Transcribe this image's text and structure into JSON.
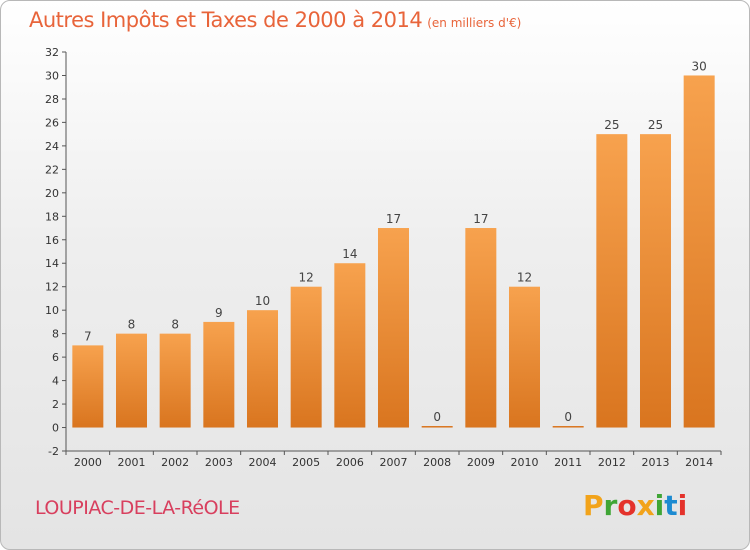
{
  "chart_data": {
    "type": "bar",
    "title": "Autres Impôts et Taxes de 2000 à 2014",
    "subtitle": "(en milliers d'€)",
    "categories": [
      "2000",
      "2001",
      "2002",
      "2003",
      "2004",
      "2005",
      "2006",
      "2007",
      "2008",
      "2009",
      "2010",
      "2011",
      "2012",
      "2013",
      "2014"
    ],
    "values": [
      7,
      8,
      8,
      9,
      10,
      12,
      14,
      17,
      0,
      17,
      12,
      0,
      25,
      25,
      30
    ],
    "ylim": [
      -2,
      32
    ],
    "yticks": [
      -2,
      0,
      2,
      4,
      6,
      8,
      10,
      12,
      14,
      16,
      18,
      20,
      22,
      24,
      26,
      28,
      30,
      32
    ],
    "grid": false,
    "bar_color_top": "#f7a24e",
    "bar_color_bottom": "#d9751f"
  },
  "location": "LOUPIAC-DE-LA-RéOLE",
  "brand": {
    "letters": [
      "P",
      "r",
      "o",
      "x",
      "i",
      "t",
      "i"
    ],
    "colors": [
      "#f2a31a",
      "#3fa535",
      "#e4322b",
      "#f2a31a",
      "#3fa535",
      "#1d8bd1",
      "#e4322b"
    ]
  }
}
